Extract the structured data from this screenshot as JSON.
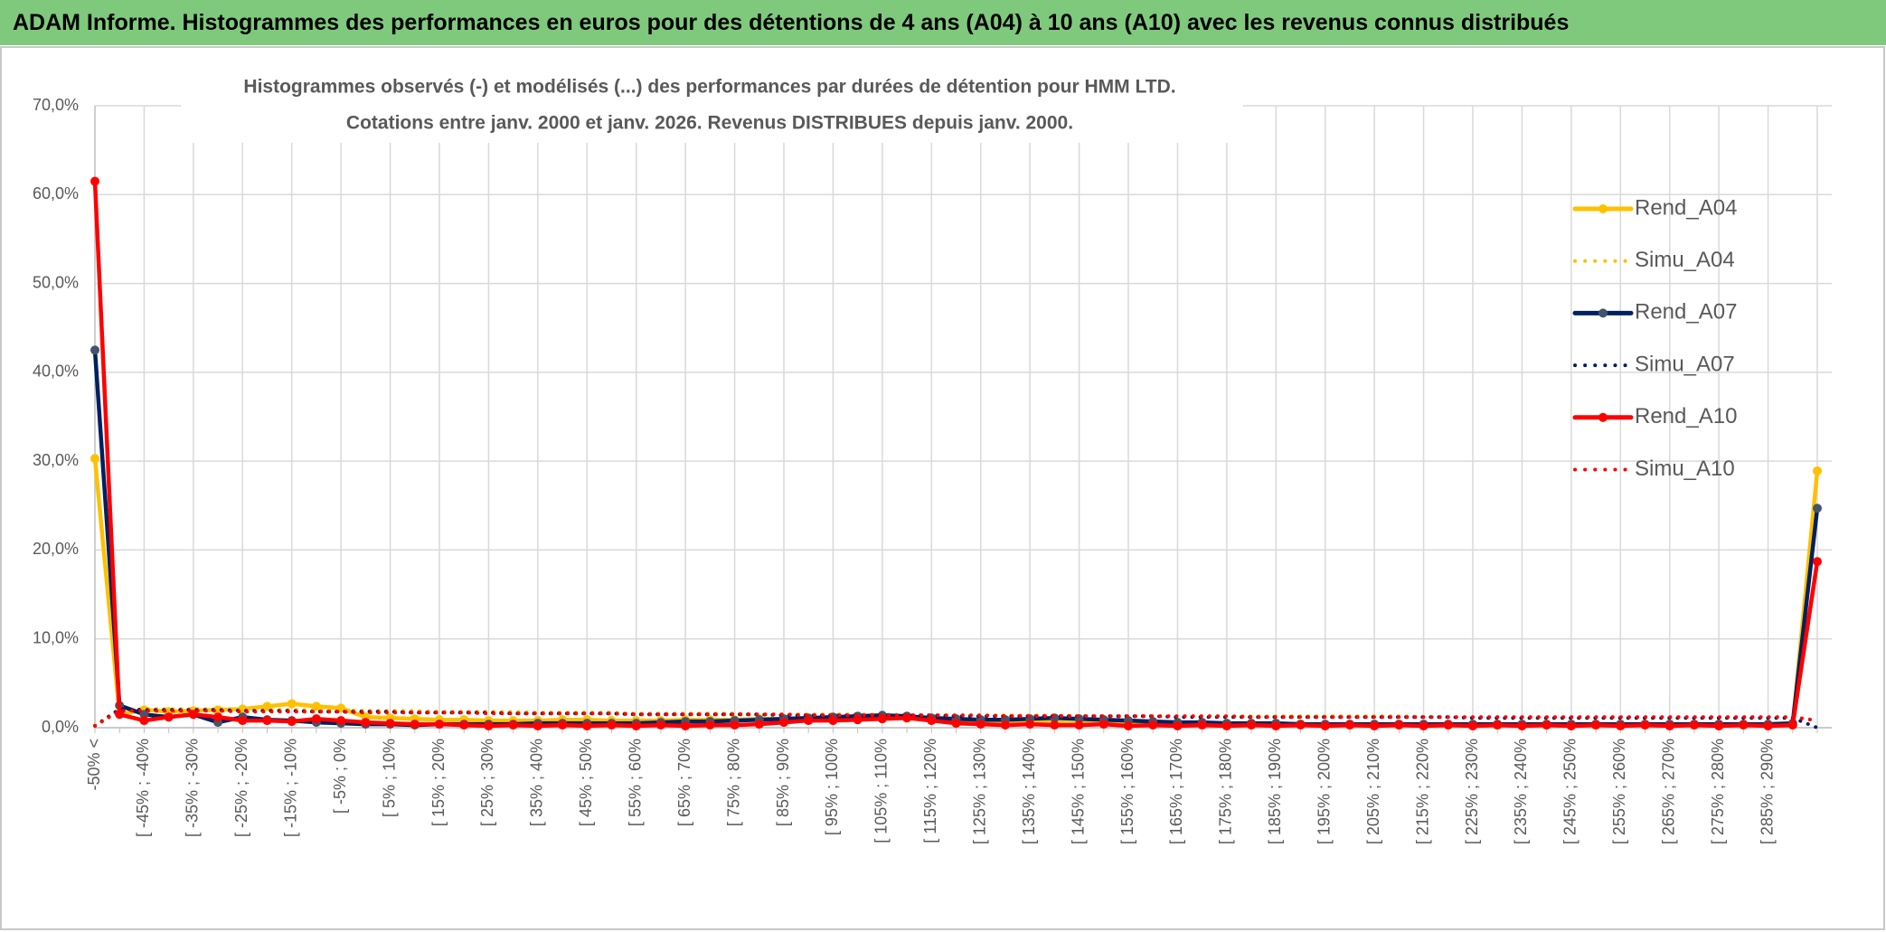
{
  "header": {
    "title": "ADAM Informe. Histogrammes des performances en euros pour des détentions de 4 ans (A04) à 10 ans (A10) avec les revenus connus distribués"
  },
  "chart_data": {
    "type": "line",
    "title": "Histogrammes observés (-) et modélisés (...) des performances par durées de détention pour HMM LTD.",
    "subtitle": "Cotations entre janv. 2000 et janv. 2026.  Revenus DISTRIBUES depuis janv. 2000.",
    "categories": [
      "-50% <",
      null,
      "[ -45% ; -40%",
      null,
      "[ -35% ; -30%",
      null,
      "[ -25% ; -20%",
      null,
      "[ -15% ; -10%",
      null,
      "[ -5% ; 0%",
      null,
      "[ 5% ; 10%",
      null,
      "[ 15% ; 20%",
      null,
      "[ 25% ; 30%",
      null,
      "[ 35% ; 40%",
      null,
      "[ 45% ; 50%",
      null,
      "[ 55% ; 60%",
      null,
      "[ 65% ; 70%",
      null,
      "[ 75% ; 80%",
      null,
      "[ 85% ; 90%",
      null,
      "[ 95% ; 100%",
      null,
      "[ 105% ; 110%",
      null,
      "[ 115% ; 120%",
      null,
      "[ 125% ; 130%",
      null,
      "[ 135% ; 140%",
      null,
      "[ 145% ; 150%",
      null,
      "[ 155% ; 160%",
      null,
      "[ 165% ; 170%",
      null,
      "[ 175% ; 180%",
      null,
      "[ 185% ; 190%",
      null,
      "[ 195% ; 200%",
      null,
      "[ 205% ; 210%",
      null,
      "[ 215% ; 220%",
      null,
      "[ 225% ; 230%",
      null,
      "[ 235% ; 240%",
      null,
      "[ 245% ; 250%",
      null,
      "[ 255% ; 260%",
      null,
      "[ 265% ; 270%",
      null,
      "[ 275% ; 280%",
      null,
      "[ 285% ; 290%",
      null,
      null
    ],
    "series": [
      {
        "name": "Rend_A04",
        "color": "#ffc000",
        "style": "solid",
        "marker": true,
        "values": [
          30.3,
          1.5,
          2.0,
          1.8,
          1.9,
          2.0,
          2.1,
          2.4,
          2.7,
          2.4,
          2.2,
          1.2,
          1.1,
          1.0,
          0.9,
          0.9,
          0.8,
          0.8,
          0.8,
          0.9,
          0.9,
          0.8,
          0.8,
          0.8,
          0.9,
          0.9,
          0.9,
          1.0,
          1.0,
          1.0,
          1.0,
          1.0,
          1.1,
          1.1,
          1.0,
          0.9,
          0.8,
          0.7,
          0.6,
          0.6,
          0.5,
          0.5,
          0.5,
          0.5,
          0.4,
          0.4,
          0.4,
          0.4,
          0.4,
          0.4,
          0.3,
          0.3,
          0.3,
          0.3,
          0.3,
          0.3,
          0.3,
          0.3,
          0.3,
          0.3,
          0.3,
          0.3,
          0.3,
          0.3,
          0.3,
          0.3,
          0.3,
          0.3,
          0.3,
          0.3,
          28.9
        ]
      },
      {
        "name": "Simu_A04",
        "color": "#ffc000",
        "style": "dotted",
        "marker": false,
        "values": [
          0.3,
          2.0,
          2.1,
          2.1,
          2.1,
          2.1,
          2.1,
          2.0,
          2.0,
          2.0,
          2.0,
          1.9,
          1.9,
          1.9,
          1.8,
          1.8,
          1.8,
          1.8,
          1.7,
          1.7,
          1.7,
          1.7,
          1.6,
          1.6,
          1.6,
          1.6,
          1.6,
          1.5,
          1.5,
          1.5,
          1.5,
          1.5,
          1.5,
          1.4,
          1.4,
          1.4,
          1.4,
          1.4,
          1.4,
          1.4,
          1.3,
          1.3,
          1.3,
          1.3,
          1.3,
          1.3,
          1.3,
          1.3,
          1.3,
          1.3,
          1.3,
          1.3,
          1.3,
          1.3,
          1.2,
          1.2,
          1.2,
          1.2,
          1.2,
          1.2,
          1.2,
          1.2,
          1.2,
          1.2,
          1.2,
          1.2,
          1.2,
          1.2,
          1.2,
          1.2,
          0.8
        ]
      },
      {
        "name": "Rend_A07",
        "color": "#002060",
        "style": "solid",
        "marker": true,
        "marker_color": "#44546a",
        "values": [
          42.5,
          2.5,
          1.5,
          1.2,
          1.5,
          0.6,
          1.2,
          0.9,
          0.8,
          0.6,
          0.5,
          0.4,
          0.4,
          0.3,
          0.4,
          0.4,
          0.4,
          0.4,
          0.5,
          0.5,
          0.5,
          0.5,
          0.5,
          0.6,
          0.7,
          0.7,
          0.8,
          0.9,
          1.0,
          1.1,
          1.2,
          1.3,
          1.4,
          1.3,
          1.1,
          1.0,
          0.9,
          0.9,
          1.0,
          1.1,
          1.0,
          0.9,
          0.8,
          0.7,
          0.6,
          0.6,
          0.5,
          0.5,
          0.5,
          0.4,
          0.4,
          0.4,
          0.4,
          0.4,
          0.4,
          0.4,
          0.4,
          0.4,
          0.4,
          0.4,
          0.4,
          0.4,
          0.4,
          0.4,
          0.4,
          0.4,
          0.4,
          0.4,
          0.4,
          0.5,
          24.7
        ]
      },
      {
        "name": "Simu_A07",
        "color": "#002060",
        "style": "dotted",
        "marker": false,
        "values": [
          0.2,
          2.1,
          2.0,
          2.0,
          2.0,
          2.0,
          1.9,
          1.9,
          1.9,
          1.8,
          1.8,
          1.8,
          1.8,
          1.7,
          1.7,
          1.7,
          1.7,
          1.6,
          1.6,
          1.6,
          1.6,
          1.6,
          1.5,
          1.5,
          1.5,
          1.5,
          1.5,
          1.5,
          1.4,
          1.4,
          1.4,
          1.4,
          1.4,
          1.4,
          1.4,
          1.3,
          1.3,
          1.3,
          1.3,
          1.3,
          1.3,
          1.3,
          1.3,
          1.3,
          1.2,
          1.2,
          1.2,
          1.2,
          1.2,
          1.2,
          1.2,
          1.2,
          1.2,
          1.2,
          1.2,
          1.2,
          1.1,
          1.1,
          1.1,
          1.1,
          1.1,
          1.1,
          1.1,
          1.1,
          1.1,
          1.1,
          1.1,
          1.1,
          1.1,
          1.1,
          0.0
        ]
      },
      {
        "name": "Rend_A10",
        "color": "#ff0000",
        "style": "solid",
        "marker": true,
        "values": [
          61.5,
          1.5,
          0.8,
          1.2,
          1.5,
          1.2,
          0.8,
          0.8,
          0.7,
          1.0,
          0.8,
          0.6,
          0.5,
          0.4,
          0.4,
          0.3,
          0.2,
          0.3,
          0.2,
          0.3,
          0.2,
          0.3,
          0.2,
          0.3,
          0.2,
          0.3,
          0.3,
          0.4,
          0.6,
          0.8,
          0.8,
          0.9,
          1.0,
          1.1,
          0.8,
          0.5,
          0.4,
          0.3,
          0.4,
          0.3,
          0.3,
          0.4,
          0.2,
          0.3,
          0.2,
          0.3,
          0.2,
          0.3,
          0.2,
          0.3,
          0.2,
          0.3,
          0.2,
          0.3,
          0.2,
          0.3,
          0.2,
          0.3,
          0.2,
          0.3,
          0.2,
          0.3,
          0.2,
          0.3,
          0.2,
          0.3,
          0.2,
          0.3,
          0.2,
          0.3,
          18.7
        ]
      },
      {
        "name": "Simu_A10",
        "color": "#ff0000",
        "style": "dotted",
        "marker": false,
        "values": [
          0.2,
          1.9,
          1.9,
          1.9,
          1.9,
          1.9,
          1.8,
          1.8,
          1.8,
          1.8,
          1.8,
          1.7,
          1.7,
          1.7,
          1.7,
          1.7,
          1.6,
          1.6,
          1.6,
          1.6,
          1.6,
          1.6,
          1.5,
          1.5,
          1.5,
          1.5,
          1.5,
          1.5,
          1.5,
          1.4,
          1.4,
          1.4,
          1.4,
          1.4,
          1.4,
          1.4,
          1.4,
          1.3,
          1.3,
          1.3,
          1.3,
          1.3,
          1.3,
          1.3,
          1.3,
          1.3,
          1.3,
          1.2,
          1.2,
          1.2,
          1.2,
          1.2,
          1.2,
          1.2,
          1.2,
          1.2,
          1.2,
          1.2,
          1.2,
          1.2,
          1.2,
          1.2,
          1.2,
          1.2,
          1.2,
          1.2,
          1.2,
          1.2,
          1.2,
          1.2,
          0.8
        ]
      }
    ],
    "ylim": [
      0,
      70
    ],
    "yticks": [
      {
        "value": 0,
        "label": "0,0%"
      },
      {
        "value": 10,
        "label": "10,0%"
      },
      {
        "value": 20,
        "label": "20,0%"
      },
      {
        "value": 30,
        "label": "30,0%"
      },
      {
        "value": 40,
        "label": "40,0%"
      },
      {
        "value": 50,
        "label": "50,0%"
      },
      {
        "value": 60,
        "label": "60,0%"
      },
      {
        "value": 70,
        "label": "70,0%"
      }
    ],
    "grid": true,
    "legend": "right"
  }
}
